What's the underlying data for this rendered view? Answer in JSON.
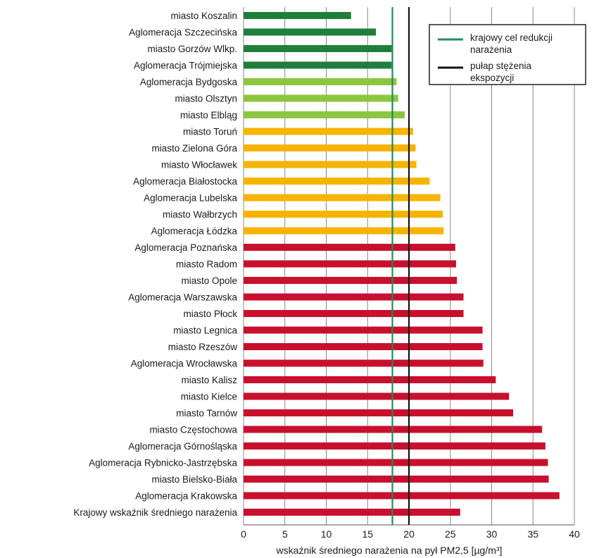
{
  "chart_data": {
    "type": "bar",
    "orientation": "horizontal",
    "categories": [
      "miasto Koszalin",
      "Aglomeracja Szczecińska",
      "miasto Gorzów Wlkp.",
      "Aglomeracja Trójmiejska",
      "Aglomeracja Bydgoska",
      "miasto Olsztyn",
      "miasto Elbląg",
      "miasto Toruń",
      "miasto Zielona Góra",
      "miasto Włocławek",
      "Aglomeracja Białostocka",
      "Aglomeracja Lubelska",
      "miasto Wałbrzych",
      "Aglomeracja Łódzka",
      "Aglomeracja Poznańska",
      "miasto Radom",
      "miasto Opole",
      "Aglomeracja Warszawska",
      "miasto Płock",
      "miasto Legnica",
      "miasto Rzeszów",
      "Aglomeracja Wrocławska",
      "miasto Kalisz",
      "miasto Kielce",
      "miasto Tarnów",
      "miasto Częstochowa",
      "Aglomeracja Górnośląska",
      "Aglomeracja Rybnicko-Jastrzębska",
      "miasto Bielsko-Biała",
      "Aglomeracja Krakowska",
      "Krajowy wskaźnik średniego narażenia"
    ],
    "values": [
      13,
      16,
      17.9,
      17.9,
      18.5,
      18.7,
      19.5,
      20.5,
      20.8,
      20.9,
      22.5,
      23.8,
      24.1,
      24.2,
      25.6,
      25.7,
      25.8,
      26.6,
      26.6,
      28.9,
      28.9,
      29.0,
      30.5,
      32.1,
      32.6,
      36.1,
      36.5,
      36.8,
      36.9,
      38.2,
      26.2
    ],
    "color_groups": [
      "darkgreen",
      "darkgreen",
      "darkgreen",
      "darkgreen",
      "lightgreen",
      "lightgreen",
      "lightgreen",
      "yellow",
      "yellow",
      "yellow",
      "yellow",
      "yellow",
      "yellow",
      "yellow",
      "red",
      "red",
      "red",
      "red",
      "red",
      "red",
      "red",
      "red",
      "red",
      "red",
      "red",
      "red",
      "red",
      "red",
      "red",
      "red",
      "red"
    ],
    "colors": {
      "darkgreen": "#1e7f3c",
      "lightgreen": "#8cc63f",
      "yellow": "#f6b400",
      "red": "#c8102e",
      "target_line": "#1e8c5a",
      "limit_line": "#111111",
      "grid": "#888888"
    },
    "xlim": [
      0,
      40
    ],
    "xticks": [
      0,
      5,
      10,
      15,
      20,
      25,
      30,
      35,
      40
    ],
    "xlabel": "wskaźnik średniego narażenia na pył PM2,5 [µg/m³]",
    "reference_lines": [
      {
        "name": "krajowy cel redukcji narażenia",
        "value": 18,
        "color": "#1e8c5a"
      },
      {
        "name": "pułap stężenia ekspozycji",
        "value": 20,
        "color": "#111111"
      }
    ],
    "legend": {
      "placement": "top-right",
      "entries": [
        {
          "lines": [
            "krajowy cel redukcji",
            "narażenia"
          ],
          "color": "#1e8c5a"
        },
        {
          "lines": [
            "pułap stężenia",
            "ekspozycji"
          ],
          "color": "#111111"
        }
      ]
    },
    "grid": true
  }
}
